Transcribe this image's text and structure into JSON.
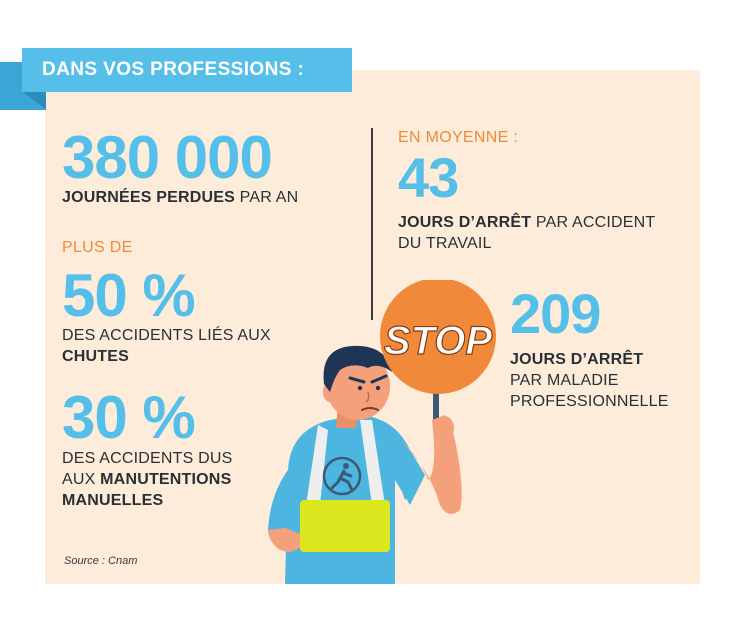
{
  "banner": {
    "title": "DANS VOS PROFESSIONS :"
  },
  "stats": [
    {
      "value": "380 000",
      "line1_bold": "JOURNÉES PERDUES",
      "line1_rest": " PAR AN"
    },
    {
      "prefix": "PLUS DE",
      "value": "50 %",
      "line1": "DES ACCIDENTS LIÉS AUX",
      "line2_bold": "CHUTES"
    },
    {
      "value": "30 %",
      "line1": "DES ACCIDENTS DUS",
      "line2_pre": "AUX ",
      "line2_bold": "MANUTENTIONS",
      "line3_bold": "MANUELLES"
    },
    {
      "prefix": "EN MOYENNE :",
      "value": "43",
      "line1_bold": "JOURS D’ARRÊT",
      "line1_rest": " PAR ACCIDENT",
      "line2": "DU TRAVAIL"
    },
    {
      "value": "209",
      "line1_bold": "JOURS D’ARRÊT",
      "line2": "PAR MALADIE",
      "line3": "PROFESSIONNELLE"
    }
  ],
  "sign": {
    "text": "STOP"
  },
  "source": "Source : Cnam",
  "colors": {
    "accent_blue": "#55bfe9",
    "accent_orange": "#f08a3a",
    "panel_bg": "#fcecd9",
    "vest_yellow": "#dbe61e"
  }
}
